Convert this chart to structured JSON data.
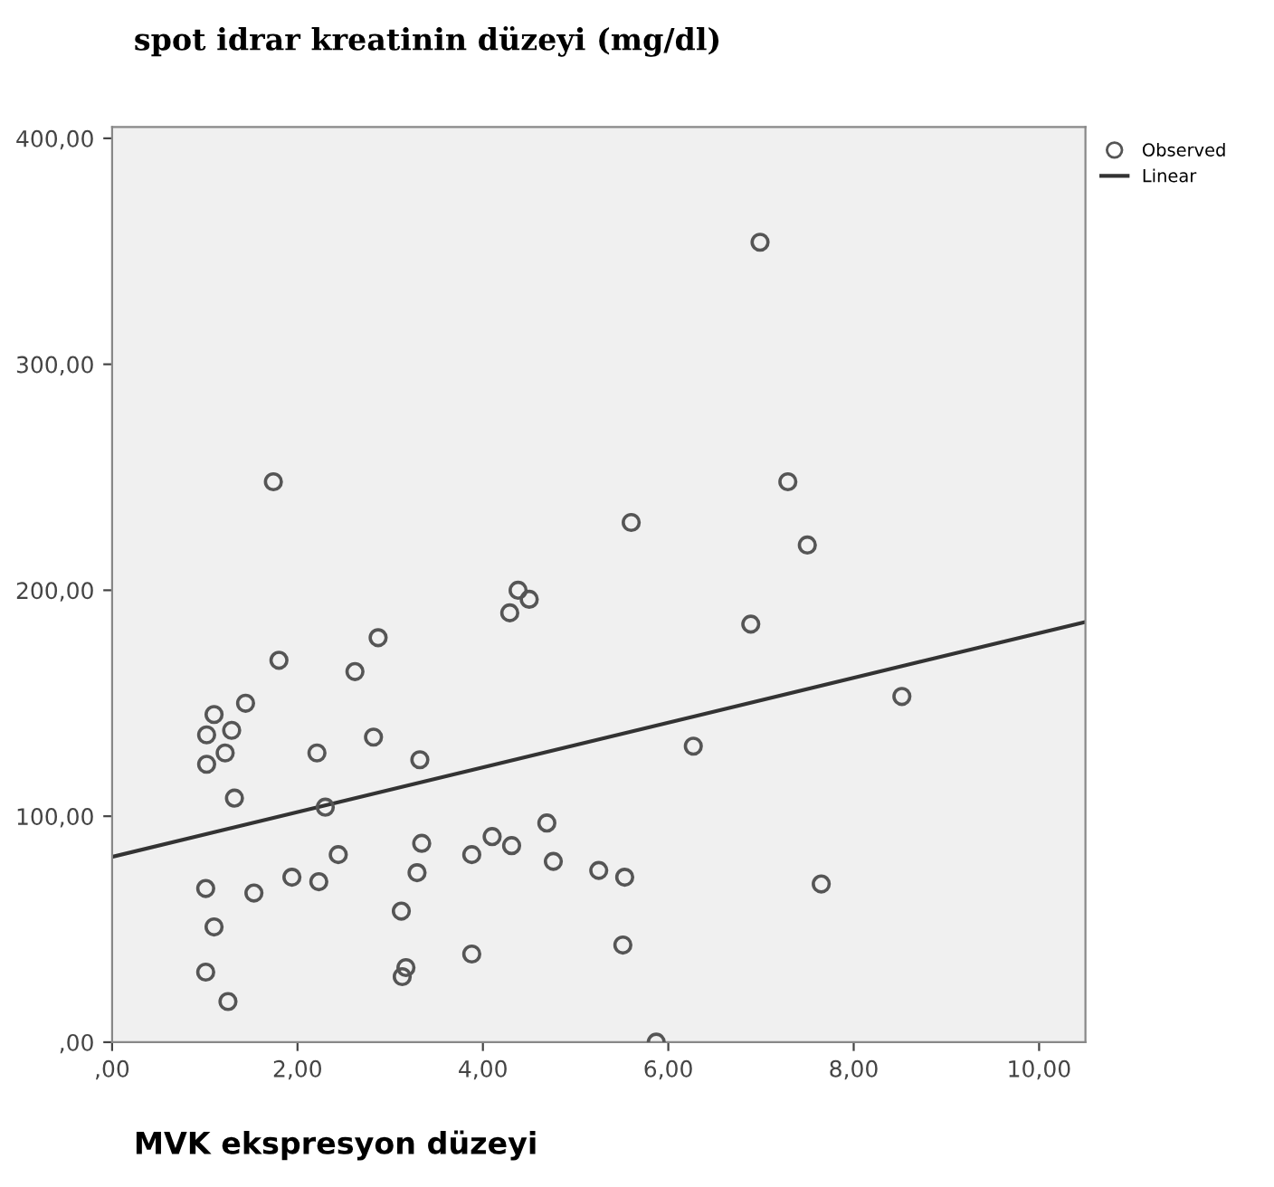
{
  "chart_data": {
    "type": "scatter",
    "title": "spot idrar kreatinin düzeyi (mg/dl)",
    "xlabel": "MVK ekspresyon düzeyi",
    "xlim": [
      0,
      10.5
    ],
    "ylim": [
      0,
      405
    ],
    "xticks": [
      {
        "value": 0,
        "label": ",00"
      },
      {
        "value": 2,
        "label": "2,00"
      },
      {
        "value": 4,
        "label": "4,00"
      },
      {
        "value": 6,
        "label": "6,00"
      },
      {
        "value": 8,
        "label": "8,00"
      },
      {
        "value": 10,
        "label": "10,00"
      }
    ],
    "yticks": [
      {
        "value": 0,
        "label": ",00"
      },
      {
        "value": 100,
        "label": "100,00"
      },
      {
        "value": 200,
        "label": "200,00"
      },
      {
        "value": 300,
        "label": "300,00"
      },
      {
        "value": 400,
        "label": "400,00"
      }
    ],
    "grid": false,
    "legend": "top right",
    "series": [
      {
        "name": "Observed",
        "marker": "circle",
        "color": "#555555",
        "x": [
          4.38,
          4.5,
          4.29,
          2.87,
          1.8,
          2.62,
          1.44,
          1.1,
          1.02,
          1.29,
          2.82,
          2.21,
          1.22,
          1.02,
          3.32,
          1.32,
          2.3,
          4.69,
          4.1,
          4.31,
          3.34,
          3.88,
          2.44,
          4.76,
          3.29,
          5.25,
          1.94,
          2.23,
          1.01,
          1.53,
          3.12,
          1.1,
          3.88,
          3.17,
          3.13,
          1.01,
          1.25,
          6.89,
          8.52,
          6.27,
          5.53,
          7.65,
          5.51,
          5.87,
          7.5,
          6.99,
          7.29,
          5.6,
          1.74
        ],
        "values": [
          200,
          196,
          190,
          179,
          169,
          164,
          150,
          145,
          136,
          138,
          135,
          128,
          128,
          123,
          125,
          108,
          104,
          97,
          91,
          87,
          88,
          83,
          83,
          80,
          75,
          76,
          73,
          71,
          68,
          66,
          58,
          51,
          39,
          33,
          29,
          31,
          18,
          185,
          153,
          131,
          73,
          70,
          43,
          0,
          220,
          354,
          248,
          230,
          248
        ]
      },
      {
        "name": "Linear",
        "type": "line",
        "marker": "none",
        "line_style": "solid",
        "color": "#333333",
        "x": [
          0,
          10.5
        ],
        "values": [
          82,
          186
        ]
      }
    ]
  }
}
